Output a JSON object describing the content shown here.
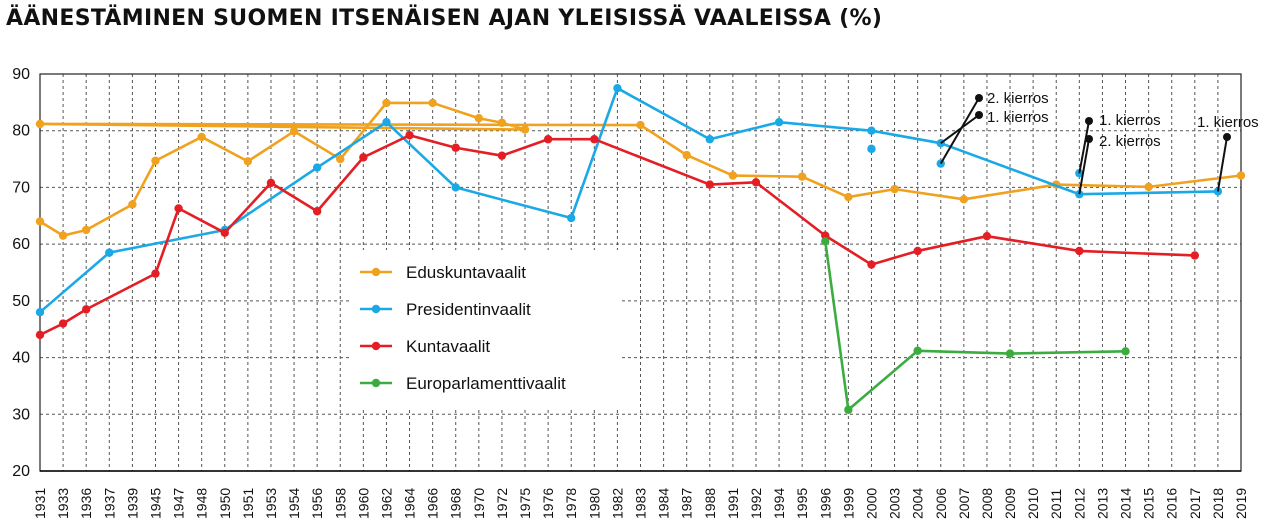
{
  "chart_data": {
    "type": "line",
    "title": "ÄÄNESTÄMINEN SUOMEN ITSENÄISEN AJAN YLEISISSÄ VAALEISSA (%)",
    "xlabel": "",
    "ylabel": "",
    "ylim": [
      20,
      90
    ],
    "yticks": [
      20,
      30,
      40,
      50,
      60,
      70,
      80,
      90
    ],
    "grid": true,
    "legend_position": "center-left",
    "categories": [
      "1931",
      "1933",
      "1936",
      "1937",
      "1939",
      "1945",
      "1947",
      "1948",
      "1950",
      "1951",
      "1953",
      "1954",
      "1956",
      "1958",
      "1960",
      "1962",
      "1964",
      "1966",
      "1968",
      "1970",
      "1972",
      "1975",
      "1976",
      "1978",
      "1980",
      "1982",
      "1983",
      "1984",
      "1987",
      "1988",
      "1991",
      "1992",
      "1994",
      "1995",
      "1996",
      "1999",
      "2000",
      "2003",
      "2004",
      "2006",
      "2007",
      "2008",
      "2009",
      "2010",
      "2011",
      "2012",
      "2013",
      "2014",
      "2015",
      "2016",
      "2017",
      "2018",
      "2019"
    ],
    "series": [
      {
        "name": "Eduskuntavaalit",
        "color": "#f0a21f",
        "points": [
          [
            "1931",
            64.0
          ],
          [
            "1933",
            61.5
          ],
          [
            "1936",
            62.5
          ],
          [
            "1939",
            67.0
          ],
          [
            "1945",
            74.7
          ],
          [
            "1948",
            78.9
          ],
          [
            "1951",
            74.6
          ],
          [
            "1954",
            79.9
          ],
          [
            "1958",
            75.0
          ],
          [
            "1962",
            84.9
          ],
          [
            "1966",
            84.9
          ],
          [
            "1970",
            82.2
          ],
          [
            "1972",
            81.4
          ],
          [
            "1975",
            80.2
          ],
          [
            "1979",
            81.2
          ],
          [
            "1983",
            81.0
          ],
          [
            "1987",
            75.7
          ],
          [
            "1991",
            72.1
          ],
          [
            "1995",
            71.9
          ],
          [
            "1999",
            68.3
          ],
          [
            "2003",
            69.7
          ],
          [
            "2007",
            67.9
          ],
          [
            "2011",
            70.5
          ],
          [
            "2015",
            70.1
          ],
          [
            "2019",
            72.1
          ]
        ]
      },
      {
        "name": "Presidentinvaalit",
        "color": "#1aa9e6",
        "points": [
          [
            "1931",
            48.0
          ],
          [
            "1937",
            58.5
          ],
          [
            "1950",
            62.5
          ],
          [
            "1956",
            73.5
          ],
          [
            "1962",
            81.5
          ],
          [
            "1968",
            70.0
          ],
          [
            "1978",
            64.6
          ],
          [
            "1982",
            87.5
          ],
          [
            "1988",
            78.5
          ],
          [
            "1994",
            81.5
          ],
          [
            "2000",
            80.0
          ],
          [
            "2006",
            77.8
          ],
          [
            "2012",
            68.8
          ],
          [
            "2018",
            69.3
          ]
        ],
        "extra_points": [
          [
            "2000",
            76.8
          ],
          [
            "2006",
            74.2
          ],
          [
            "2012",
            72.5
          ]
        ]
      },
      {
        "name": "Kuntavaalit",
        "color": "#e31e24",
        "points": [
          [
            "1931",
            44.0
          ],
          [
            "1933",
            46.0
          ],
          [
            "1936",
            48.5
          ],
          [
            "1945",
            54.8
          ],
          [
            "1947",
            66.3
          ],
          [
            "1950",
            62.0
          ],
          [
            "1953",
            70.8
          ],
          [
            "1956",
            65.8
          ],
          [
            "1960",
            75.3
          ],
          [
            "1964",
            79.2
          ],
          [
            "1968",
            77.0
          ],
          [
            "1972",
            75.6
          ],
          [
            "1976",
            78.5
          ],
          [
            "1980",
            78.5
          ],
          [
            "1988",
            70.5
          ],
          [
            "1992",
            70.9
          ],
          [
            "1996",
            61.5
          ],
          [
            "2000",
            56.4
          ],
          [
            "2004",
            58.8
          ],
          [
            "2008",
            61.4
          ],
          [
            "2012",
            58.8
          ],
          [
            "2017",
            58.0
          ]
        ]
      },
      {
        "name": "Europarlamenttivaalit",
        "color": "#3cac41",
        "points": [
          [
            "1996",
            60.5
          ],
          [
            "1999",
            30.8
          ],
          [
            "2004",
            41.2
          ],
          [
            "2009",
            40.7
          ],
          [
            "2014",
            41.1
          ]
        ]
      }
    ],
    "annotations": [
      "2. kierros",
      "1. kierros",
      "1. kierros",
      "2. kierros",
      "1. kierros"
    ]
  }
}
